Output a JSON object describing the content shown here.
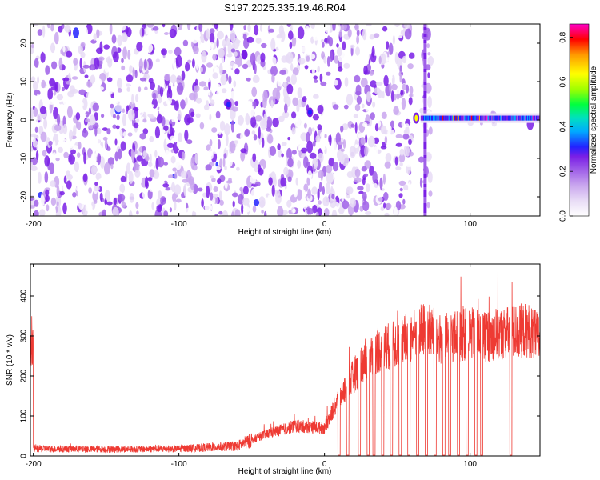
{
  "figure_title": "S197.2025.335.19.46.R04",
  "chart_data": [
    {
      "type": "heatmap",
      "title": "S197.2025.335.19.46.R04",
      "xlabel": "Height of straight line (km)",
      "ylabel": "Frequency (Hz)",
      "xlim": [
        -202,
        148
      ],
      "ylim": [
        -25,
        25
      ],
      "xticks": [
        -200,
        -100,
        0,
        100
      ],
      "yticks": [
        -20,
        -10,
        0,
        10,
        20
      ],
      "colorbar": {
        "label": "Normalized spectral amplitude",
        "range": [
          0.0,
          0.86
        ],
        "ticks": [
          0.0,
          0.2,
          0.4,
          0.6,
          0.8
        ],
        "colormap": [
          "#ffffff",
          "#e8dcf6",
          "#c9a6ee",
          "#9f5fe8",
          "#7a1fe6",
          "#2222ff",
          "#00aaff",
          "#00e0c0",
          "#00ff40",
          "#a0ff00",
          "#ffff00",
          "#ff9900",
          "#ff0000",
          "#ff00c8"
        ]
      },
      "features": [
        {
          "label": "steady line near 0 Hz",
          "x_range": [
            66,
            148
          ],
          "freq": 0.5,
          "peak_amplitude": 0.86
        },
        {
          "label": "blob",
          "x": -55,
          "freq": 17,
          "amplitude": 0.25
        },
        {
          "label": "blob",
          "x": -66,
          "freq": 4,
          "amplitude": 0.3
        },
        {
          "label": "blob",
          "x": -10,
          "freq": 2,
          "amplitude": 0.3
        }
      ]
    },
    {
      "type": "line",
      "xlabel": "Height of straight line (km)",
      "ylabel": "SNR (10 * v/v)",
      "xlim": [
        -202,
        148
      ],
      "ylim": [
        0,
        480
      ],
      "xticks": [
        -200,
        -100,
        0,
        100
      ],
      "yticks": [
        0,
        100,
        200,
        300,
        400
      ],
      "color": "#ee3a33",
      "series": [
        {
          "name": "SNR",
          "x": [
            -200,
            -150,
            -100,
            -60,
            -40,
            -20,
            0,
            10,
            20,
            30,
            40,
            50,
            60,
            70,
            80,
            90,
            100,
            110,
            120,
            130,
            140,
            148
          ],
          "values": [
            18,
            17,
            18,
            25,
            55,
            75,
            70,
            145,
            200,
            250,
            270,
            280,
            300,
            320,
            290,
            300,
            305,
            300,
            305,
            310,
            315,
            290
          ]
        }
      ],
      "dropouts_x": [
        10,
        16,
        24,
        30,
        34,
        40,
        46,
        52,
        58,
        64,
        70,
        76,
        82,
        86,
        92,
        98,
        104,
        108,
        128
      ]
    }
  ]
}
